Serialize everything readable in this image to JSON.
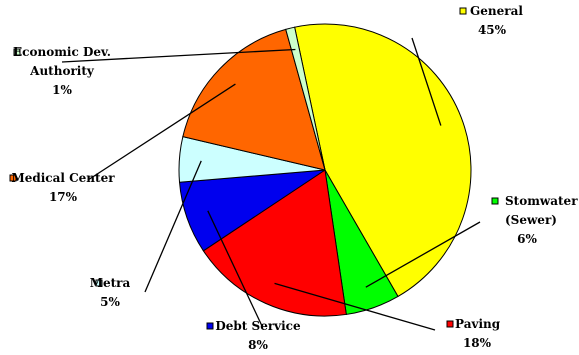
{
  "chart_data": {
    "type": "pie",
    "slices": [
      {
        "label": "General",
        "percent_label": "45%",
        "value": 45,
        "color": "#ffff00"
      },
      {
        "label": "Stomwater (Sewer)",
        "label_lines": [
          "Stomwater",
          "(Sewer)"
        ],
        "percent_label": "6%",
        "value": 6,
        "color": "#00ff00"
      },
      {
        "label": "Paving",
        "percent_label": "18%",
        "value": 18,
        "color": "#ff0000"
      },
      {
        "label": "Debt Service",
        "percent_label": "8%",
        "value": 8,
        "color": "#0000ee"
      },
      {
        "label": "Metra",
        "percent_label": "5%",
        "value": 5,
        "color": "#ccffff"
      },
      {
        "label": "Medical Center",
        "percent_label": "17%",
        "value": 17,
        "color": "#ff6600"
      },
      {
        "label": "Economic Dev. Authority",
        "label_lines": [
          "Economic Dev.",
          "Authority"
        ],
        "percent_label": "1%",
        "value": 1,
        "color": "#ccffcc"
      }
    ],
    "legend": "inline-callouts"
  }
}
